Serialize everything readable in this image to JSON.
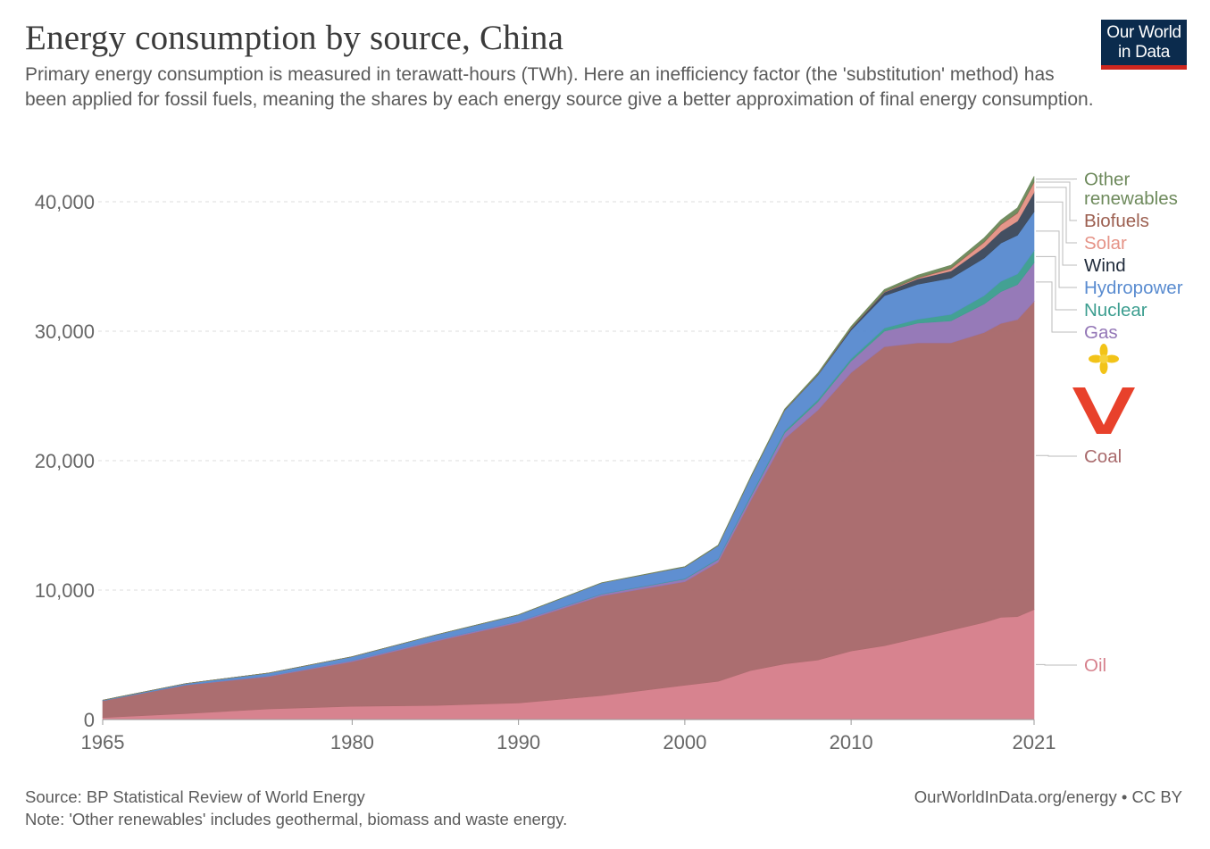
{
  "header": {
    "title": "Energy consumption by source, China",
    "subtitle": "Primary energy consumption is measured in terawatt-hours (TWh). Here an inefficiency factor (the 'substitution' method) has been applied for fossil fuels, meaning the shares by each energy source give a better approximation of final energy consumption."
  },
  "logo": {
    "line1": "Our World",
    "line2": "in Data"
  },
  "footer": {
    "source": "Source: BP Statistical Review of World Energy",
    "note": "Note: 'Other renewables' includes geothermal, biomass and waste energy.",
    "credit": "OurWorldInData.org/energy • CC BY"
  },
  "chart_data": {
    "type": "area",
    "stacked": true,
    "x": [
      1965,
      1970,
      1975,
      1980,
      1985,
      1990,
      1995,
      2000,
      2002,
      2004,
      2006,
      2008,
      2010,
      2012,
      2014,
      2016,
      2018,
      2019,
      2020,
      2021
    ],
    "x_ticks": [
      "1965",
      "1980",
      "1990",
      "2000",
      "2010",
      "2021"
    ],
    "y_ticks": [
      "0",
      "10,000",
      "20,000",
      "30,000",
      "40,000"
    ],
    "ylim": [
      0,
      43000
    ],
    "grid": true,
    "series": [
      {
        "name": "Oil",
        "color": "#d6808c",
        "values": [
          150,
          460,
          820,
          1020,
          1090,
          1280,
          1850,
          2650,
          2950,
          3800,
          4300,
          4600,
          5300,
          5700,
          6300,
          6900,
          7500,
          7900,
          7950,
          8500
        ]
      },
      {
        "name": "Coal",
        "color": "#a96a6c",
        "values": [
          1300,
          2200,
          2500,
          3450,
          4950,
          6200,
          7700,
          8000,
          9200,
          13200,
          17400,
          19300,
          21500,
          23100,
          22800,
          22200,
          22400,
          22700,
          22950,
          23800
        ]
      },
      {
        "name": "Gas",
        "color": "#9376b6",
        "values": [
          10,
          25,
          60,
          90,
          95,
          110,
          130,
          200,
          220,
          300,
          450,
          650,
          900,
          1200,
          1520,
          1700,
          2200,
          2450,
          2700,
          3000
        ]
      },
      {
        "name": "Nuclear",
        "color": "#3d9e90",
        "values": [
          0,
          0,
          0,
          0,
          0,
          0,
          30,
          40,
          55,
          110,
          130,
          160,
          180,
          240,
          300,
          500,
          650,
          800,
          820,
          930
        ]
      },
      {
        "name": "Hydropower",
        "color": "#5a8cd0",
        "values": [
          40,
          100,
          220,
          300,
          400,
          500,
          850,
          900,
          1000,
          1400,
          1600,
          1900,
          2200,
          2500,
          2700,
          2800,
          2900,
          2950,
          2990,
          3000
        ]
      },
      {
        "name": "Wind",
        "color": "#3d4a5c",
        "values": [
          0,
          0,
          0,
          0,
          0,
          0,
          0,
          0,
          0,
          5,
          20,
          40,
          140,
          270,
          420,
          550,
          820,
          900,
          1100,
          1500
        ]
      },
      {
        "name": "Solar",
        "color": "#e59387",
        "values": [
          0,
          0,
          0,
          0,
          0,
          0,
          0,
          0,
          0,
          0,
          0,
          0,
          5,
          20,
          60,
          180,
          400,
          520,
          600,
          760
        ]
      },
      {
        "name": "Biofuels",
        "color": "#9c5f50",
        "values": [
          0,
          0,
          0,
          0,
          0,
          0,
          0,
          5,
          10,
          10,
          20,
          25,
          30,
          30,
          35,
          40,
          45,
          45,
          48,
          50
        ]
      },
      {
        "name": "Other renewables",
        "color": "#6e8a5c",
        "values": [
          0,
          0,
          0,
          0,
          5,
          10,
          15,
          25,
          35,
          50,
          70,
          100,
          130,
          160,
          200,
          230,
          300,
          320,
          380,
          430
        ]
      }
    ],
    "legend_order": [
      "Other renewables",
      "Biofuels",
      "Solar",
      "Wind",
      "Hydropower",
      "Nuclear",
      "Gas",
      "Coal",
      "Oil"
    ]
  }
}
